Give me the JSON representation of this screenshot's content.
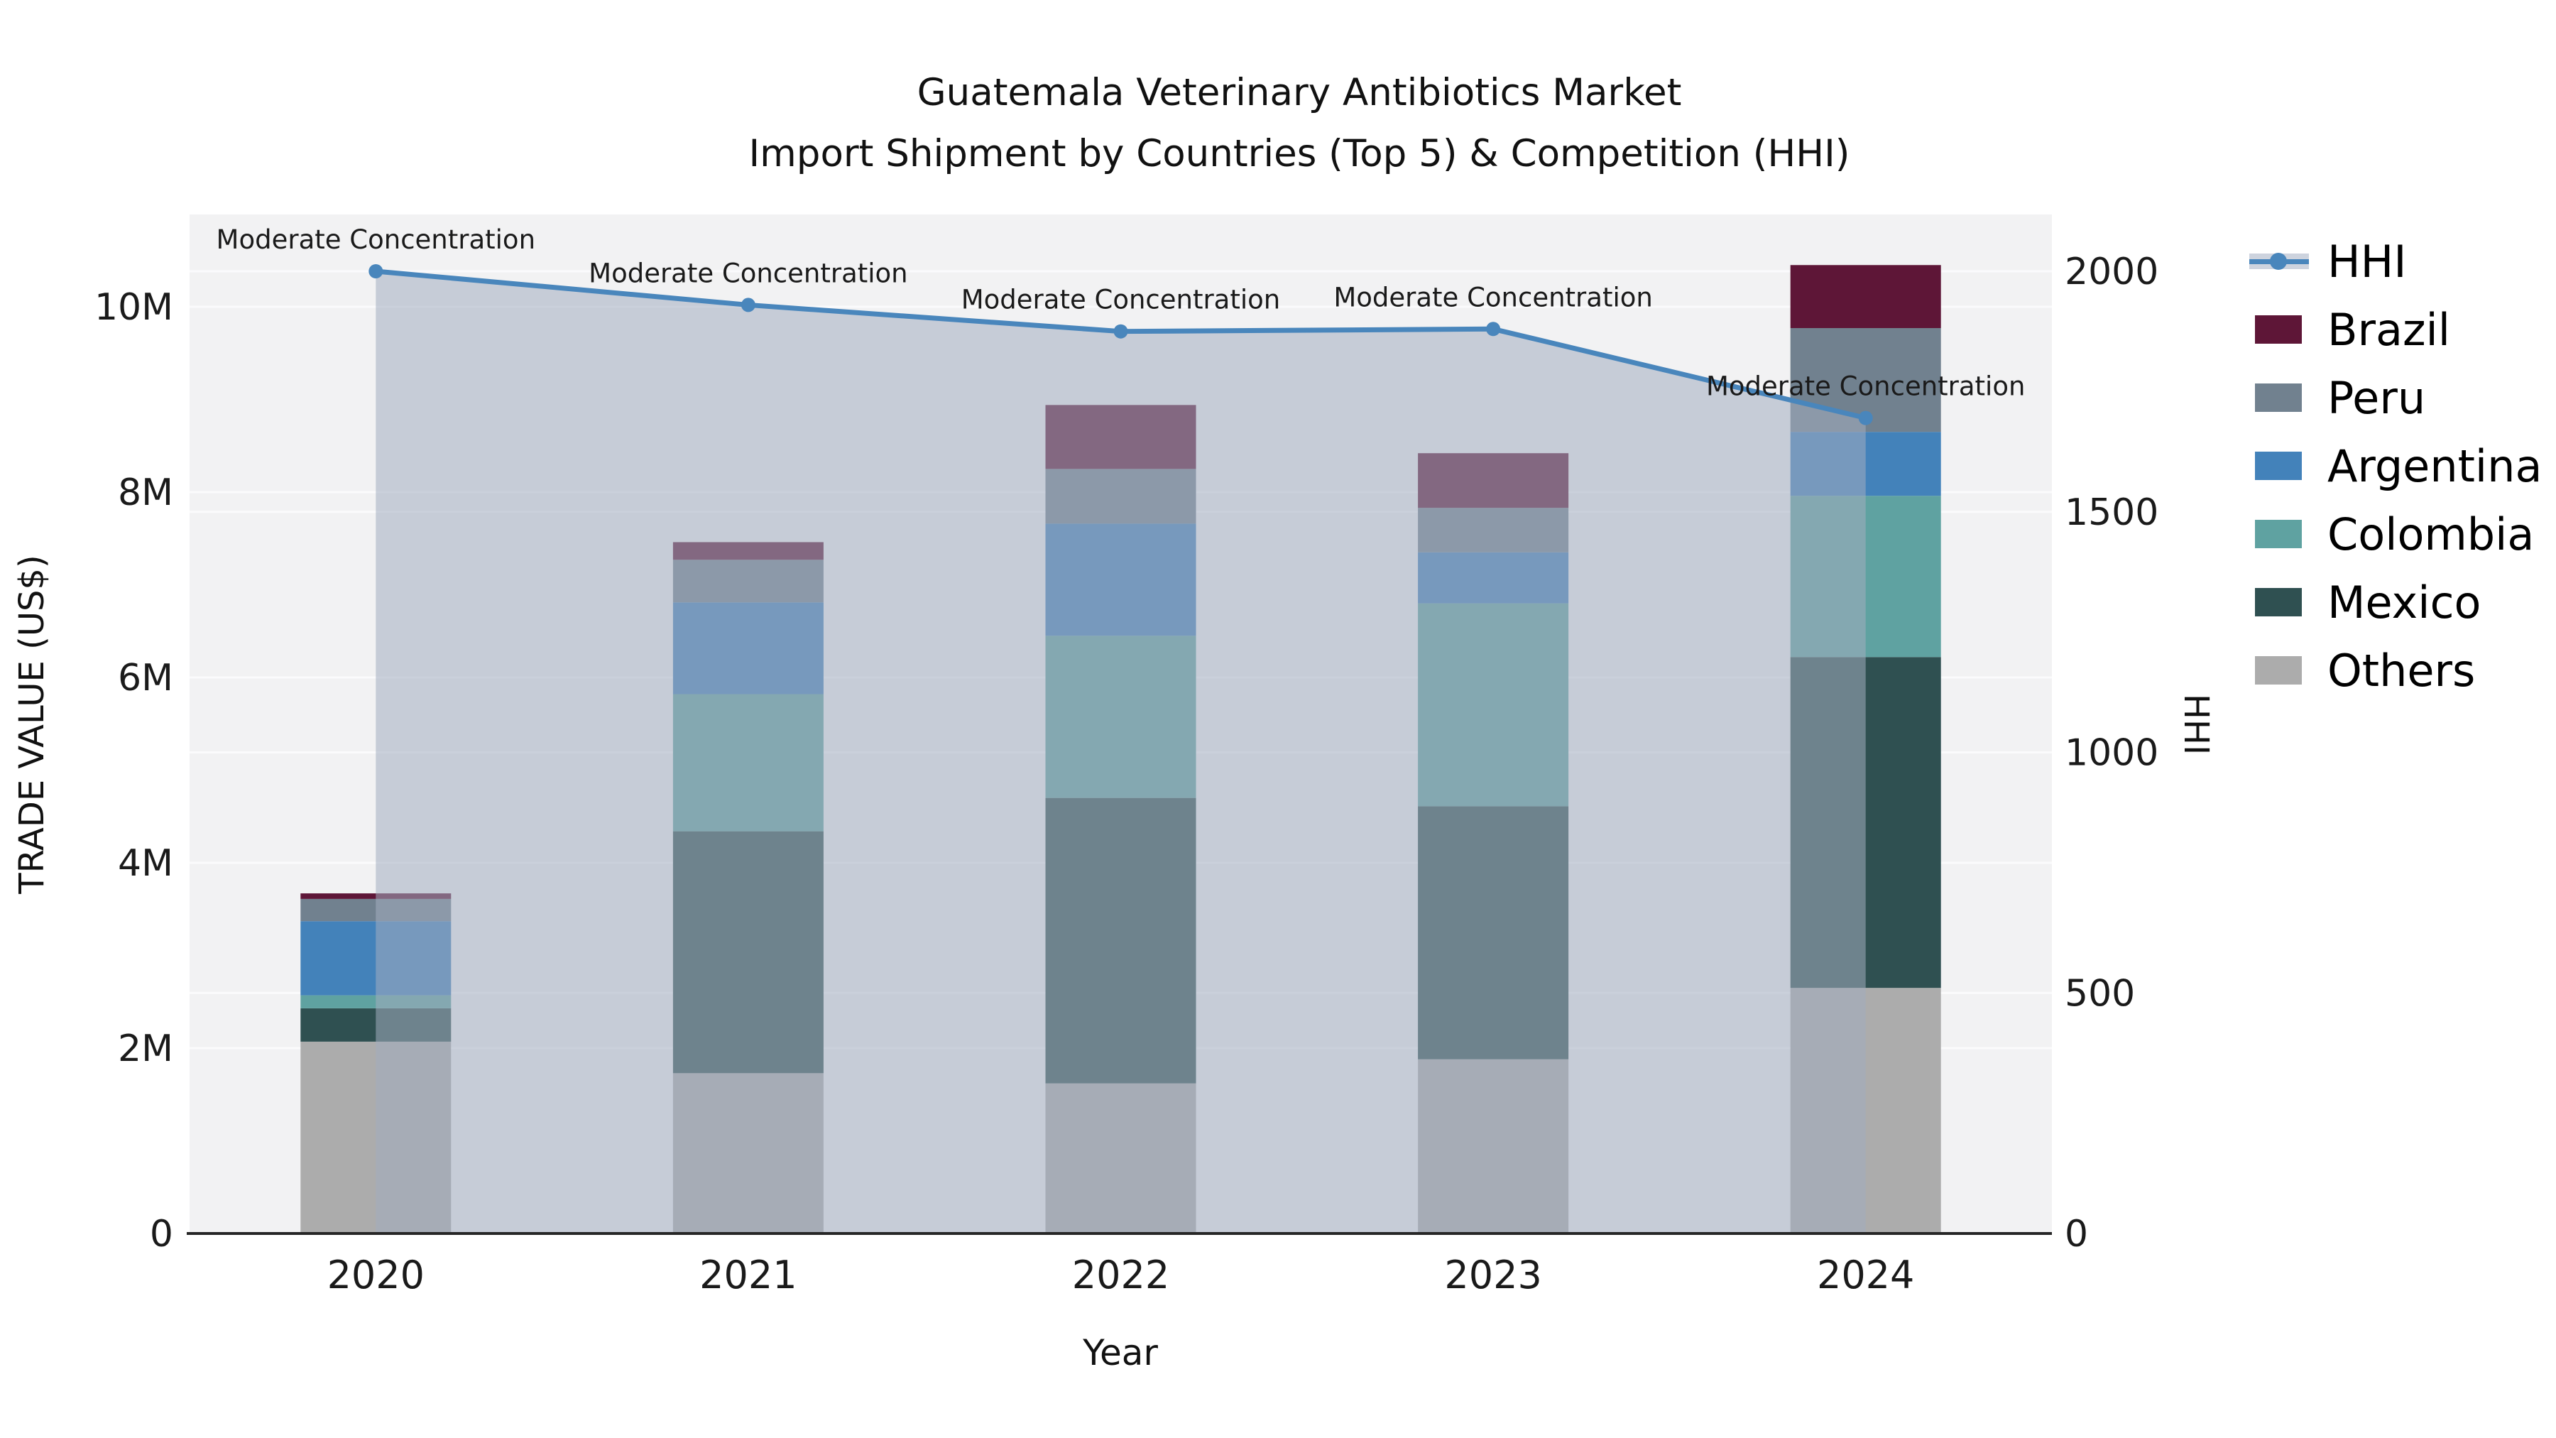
{
  "chart_data": {
    "type": "bar+line",
    "title_line1": "Guatemala Veterinary Antibiotics Market",
    "title_line2": "Import Shipment by Countries (Top 5) & Competition (HHI)",
    "xlabel": "Year",
    "ylabel_left": "TRADE VALUE (US$)",
    "ylabel_right": "HHI",
    "categories": [
      "2020",
      "2021",
      "2022",
      "2023",
      "2024"
    ],
    "stack_order": [
      "Others",
      "Mexico",
      "Colombia",
      "Argentina",
      "Peru",
      "Brazil"
    ],
    "series": [
      {
        "name": "Others",
        "color": "#ACACAC",
        "values": [
          2.07,
          1.73,
          1.62,
          1.88,
          2.65
        ]
      },
      {
        "name": "Mexico",
        "color": "#2F5051",
        "values": [
          0.36,
          2.61,
          3.08,
          2.73,
          3.57
        ]
      },
      {
        "name": "Colombia",
        "color": "#5FA2A1",
        "values": [
          0.14,
          1.48,
          1.75,
          2.19,
          1.74
        ]
      },
      {
        "name": "Argentina",
        "color": "#4382BA",
        "values": [
          0.8,
          0.99,
          1.21,
          0.55,
          0.69
        ]
      },
      {
        "name": "Peru",
        "color": "#71818F",
        "values": [
          0.24,
          0.46,
          0.59,
          0.48,
          1.12
        ]
      },
      {
        "name": "Brazil",
        "color": "#5E1637",
        "values": [
          0.06,
          0.19,
          0.69,
          0.59,
          0.68
        ]
      }
    ],
    "bar_totals_musd": [
      3.67,
      7.46,
      8.94,
      8.42,
      10.45
    ],
    "line_series": {
      "name": "HHI",
      "color": "#4986BC",
      "area_fill_color": "rgba(163,173,192,0.55)",
      "values": [
        2000,
        1930,
        1875,
        1880,
        1695
      ]
    },
    "annotations": [
      "Moderate Concentration",
      "Moderate Concentration",
      "Moderate Concentration",
      "Moderate Concentration",
      "Moderate Concentration"
    ],
    "y_left_ticks": [
      {
        "value": 0,
        "label": "0"
      },
      {
        "value": 2,
        "label": "2M"
      },
      {
        "value": 4,
        "label": "4M"
      },
      {
        "value": 6,
        "label": "6M"
      },
      {
        "value": 8,
        "label": "8M"
      },
      {
        "value": 10,
        "label": "10M"
      }
    ],
    "y_right_ticks": [
      {
        "value": 0,
        "label": "0"
      },
      {
        "value": 500,
        "label": "500"
      },
      {
        "value": 1000,
        "label": "1000"
      },
      {
        "value": 1500,
        "label": "1500"
      },
      {
        "value": 2000,
        "label": "2000"
      }
    ],
    "axis_ranges": {
      "left_musd": [
        0,
        11.0
      ],
      "right_hhi": [
        0,
        2120
      ]
    },
    "grid": true,
    "legend_position": "right",
    "legend": {
      "items": [
        {
          "label": "HHI",
          "type": "line",
          "color": "#4986BC",
          "band_color": "#cdd3de"
        },
        {
          "label": "Brazil",
          "type": "patch",
          "color": "#5E1637"
        },
        {
          "label": "Peru",
          "type": "patch",
          "color": "#71818F"
        },
        {
          "label": "Argentina",
          "type": "patch",
          "color": "#4382BA"
        },
        {
          "label": "Colombia",
          "type": "patch",
          "color": "#5FA2A1"
        },
        {
          "label": "Mexico",
          "type": "patch",
          "color": "#2F5051"
        },
        {
          "label": "Others",
          "type": "patch",
          "color": "#ACACAC"
        }
      ]
    },
    "style": {
      "plot_bg": "#f2f2f3",
      "gridline_color": "#fdfdfd",
      "axis_line_color": "#262626",
      "text_color": "#1a1a1a"
    }
  }
}
